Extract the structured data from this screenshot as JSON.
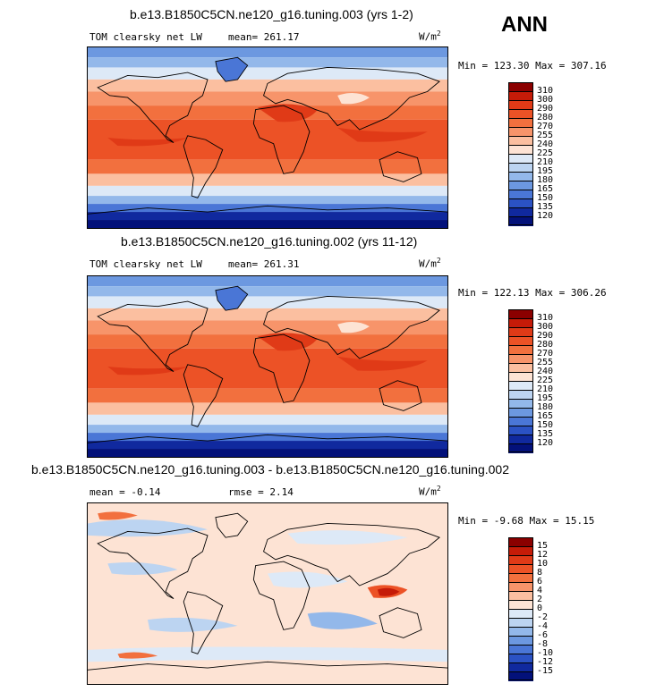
{
  "season": "ANN",
  "units": "W/m",
  "units_sup": "2",
  "panels": [
    {
      "title": "b.e13.B1850C5CN.ne120_g16.tuning.003 (yrs 1-2)",
      "variable": "TOM clearsky net LW",
      "stat1": "mean= 261.17",
      "stat2": "",
      "minmax": "Min = 123.30 Max = 307.16",
      "field": "abs"
    },
    {
      "title": "b.e13.B1850C5CN.ne120_g16.tuning.002 (yrs 11-12)",
      "variable": "TOM clearsky net LW",
      "stat1": "mean= 261.31",
      "stat2": "",
      "minmax": "Min = 122.13 Max = 306.26",
      "field": "abs"
    },
    {
      "title": "b.e13.B1850C5CN.ne120_g16.tuning.003 - b.e13.B1850C5CN.ne120_g16.tuning.002",
      "variable": "mean =  -0.14",
      "stat1": "rmse =   2.14",
      "stat2": "",
      "minmax": "Min =  -9.68 Max =  15.15",
      "field": "diff"
    }
  ],
  "colorbars": {
    "abs": {
      "levels": [
        "310",
        "300",
        "290",
        "280",
        "270",
        "255",
        "240",
        "225",
        "210",
        "195",
        "180",
        "165",
        "150",
        "135",
        "120"
      ],
      "colors": [
        "#8b0000",
        "#c51b08",
        "#e03a17",
        "#ec5226",
        "#f2703e",
        "#f7946a",
        "#fbbfa0",
        "#fde3d4",
        "#dde9f7",
        "#bcd4f1",
        "#93b8ea",
        "#6c98e0",
        "#4a76d6",
        "#2b52c4",
        "#10299e",
        "#03117a"
      ]
    },
    "diff": {
      "levels": [
        "15",
        "12",
        "10",
        "8",
        "6",
        "4",
        "2",
        "0",
        "-2",
        "-4",
        "-6",
        "-8",
        "-10",
        "-12",
        "-15"
      ],
      "colors": [
        "#8b0000",
        "#c51b08",
        "#e03a17",
        "#ec5226",
        "#f2703e",
        "#f7946a",
        "#fbbfa0",
        "#fde3d4",
        "#dde9f7",
        "#bcd4f1",
        "#93b8ea",
        "#6c98e0",
        "#4a76d6",
        "#2b52c4",
        "#10299e",
        "#03117a"
      ]
    }
  }
}
